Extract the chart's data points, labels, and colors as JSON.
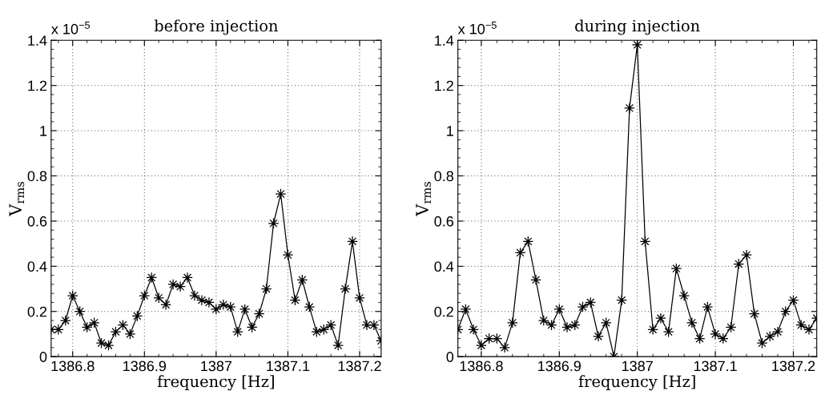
{
  "chart_data": [
    {
      "type": "line",
      "title": "before injection",
      "xlabel": "frequency [Hz]",
      "ylabel": "V$_{rms}$",
      "annotations": [
        "x 10$^{−5}$"
      ],
      "x": [
        1386.77,
        1386.78,
        1386.79,
        1386.8,
        1386.81,
        1386.82,
        1386.83,
        1386.84,
        1386.85,
        1386.86,
        1386.87,
        1386.88,
        1386.89,
        1386.9,
        1386.91,
        1386.92,
        1386.93,
        1386.94,
        1386.95,
        1386.96,
        1386.97,
        1386.98,
        1386.99,
        1387.0,
        1387.01,
        1387.02,
        1387.03,
        1387.04,
        1387.05,
        1387.06,
        1387.07,
        1387.08,
        1387.09,
        1387.1,
        1387.11,
        1387.12,
        1387.13,
        1387.14,
        1387.15,
        1387.16,
        1387.17,
        1387.18,
        1387.19,
        1387.2,
        1387.21,
        1387.22,
        1387.23
      ],
      "series": [
        {
          "color": "#000000",
          "values": [
            0.12,
            0.12,
            0.16,
            0.27,
            0.2,
            0.13,
            0.15,
            0.06,
            0.05,
            0.11,
            0.14,
            0.1,
            0.18,
            0.27,
            0.35,
            0.26,
            0.23,
            0.32,
            0.31,
            0.35,
            0.27,
            0.25,
            0.24,
            0.21,
            0.23,
            0.22,
            0.11,
            0.21,
            0.13,
            0.19,
            0.3,
            0.59,
            0.72,
            0.45,
            0.25,
            0.34,
            0.22,
            0.11,
            0.12,
            0.14,
            0.05,
            0.3,
            0.51,
            0.26,
            0.14,
            0.14,
            0.07
          ]
        }
      ],
      "xlim": [
        1386.77,
        1387.23
      ],
      "xticks": [
        1386.8,
        1386.9,
        1387,
        1387.1,
        1387.2
      ],
      "ylim": [
        0,
        1.4
      ],
      "yticks": [
        0,
        0.2,
        0.4,
        0.6,
        0.8,
        1,
        1.2,
        1.4
      ],
      "grid": true,
      "marker": "star",
      "line_style": "solid",
      "legend": false
    },
    {
      "type": "line",
      "title": "during injection",
      "xlabel": "frequency [Hz]",
      "ylabel": "V$_{rms}$",
      "annotations": [
        "x 10$^{−5}$"
      ],
      "x": [
        1386.77,
        1386.78,
        1386.79,
        1386.8,
        1386.81,
        1386.82,
        1386.83,
        1386.84,
        1386.85,
        1386.86,
        1386.87,
        1386.88,
        1386.89,
        1386.9,
        1386.91,
        1386.92,
        1386.93,
        1386.94,
        1386.95,
        1386.96,
        1386.97,
        1386.98,
        1386.99,
        1387.0,
        1387.01,
        1387.02,
        1387.03,
        1387.04,
        1387.05,
        1387.06,
        1387.07,
        1387.08,
        1387.09,
        1387.1,
        1387.11,
        1387.12,
        1387.13,
        1387.14,
        1387.15,
        1387.16,
        1387.17,
        1387.18,
        1387.19,
        1387.2,
        1387.21,
        1387.22,
        1387.23
      ],
      "series": [
        {
          "color": "#000000",
          "values": [
            0.12,
            0.21,
            0.12,
            0.05,
            0.08,
            0.08,
            0.04,
            0.15,
            0.46,
            0.51,
            0.34,
            0.16,
            0.14,
            0.21,
            0.13,
            0.14,
            0.22,
            0.24,
            0.09,
            0.15,
            0.0,
            0.25,
            1.1,
            1.38,
            0.51,
            0.12,
            0.17,
            0.11,
            0.39,
            0.27,
            0.15,
            0.08,
            0.22,
            0.1,
            0.08,
            0.13,
            0.41,
            0.45,
            0.19,
            0.06,
            0.09,
            0.11,
            0.2,
            0.25,
            0.14,
            0.12,
            0.17
          ]
        }
      ],
      "xlim": [
        1386.77,
        1387.23
      ],
      "xticks": [
        1386.8,
        1386.9,
        1387,
        1387.1,
        1387.2
      ],
      "ylim": [
        0,
        1.4
      ],
      "yticks": [
        0,
        0.2,
        0.4,
        0.6,
        0.8,
        1,
        1.2,
        1.4
      ],
      "grid": true,
      "marker": "star",
      "line_style": "solid",
      "legend": false
    }
  ]
}
